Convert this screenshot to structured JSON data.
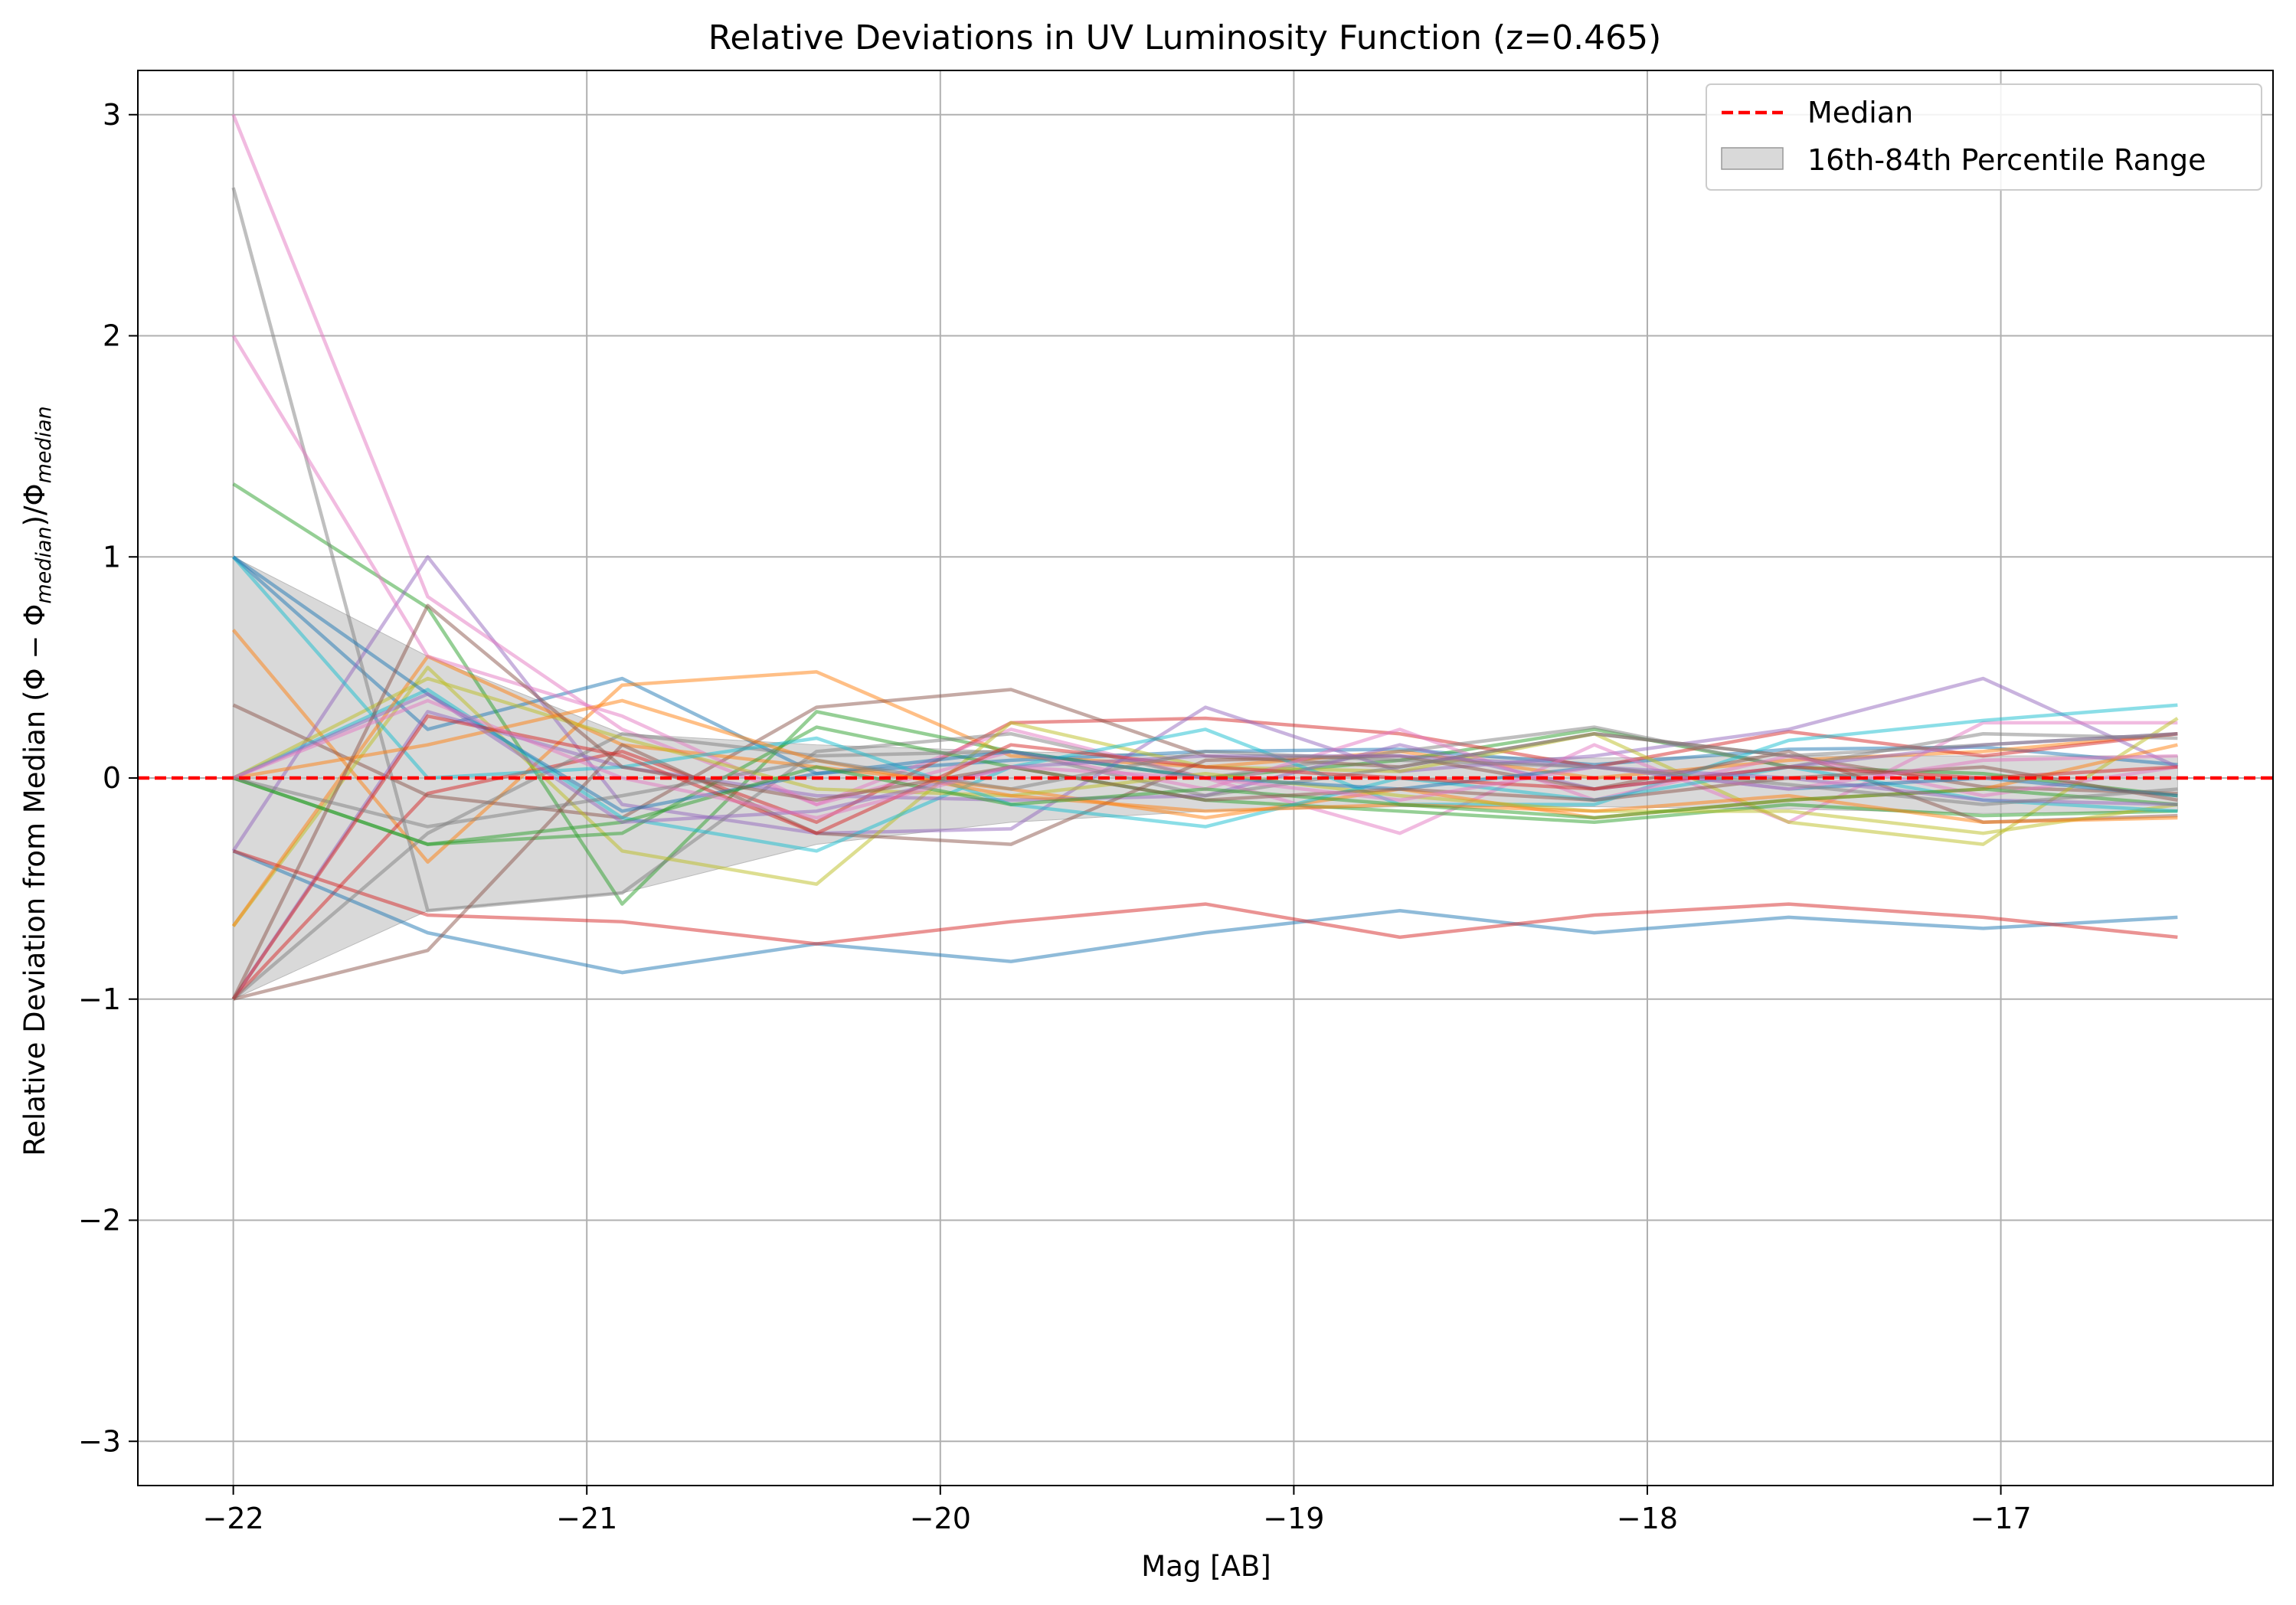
{
  "chart_data": {
    "type": "line",
    "title": "Relative Deviations in UV Luminosity Function (z=0.465)",
    "xlabel": "Mag [AB]",
    "ylabel": "Relative Deviation from Median (Φ − Φ",
    "ylabel_sub": "median",
    "ylabel_mid": ")/Φ",
    "xlim": [
      -22.27,
      -16.23
    ],
    "ylim": [
      -3.2,
      3.2
    ],
    "xticks": [
      -22,
      -21,
      -20,
      -19,
      -18,
      -17
    ],
    "yticks": [
      -3,
      -2,
      -1,
      0,
      1,
      2,
      3
    ],
    "xtick_labels": [
      "−22",
      "−21",
      "−20",
      "−19",
      "−18",
      "−17"
    ],
    "ytick_labels": [
      "−3",
      "−2",
      "−1",
      "0",
      "1",
      "2",
      "3"
    ],
    "grid": true,
    "legend": {
      "position": "upper right",
      "entries": [
        "Median",
        "16th-84th Percentile Range"
      ]
    },
    "x": [
      -22.0,
      -21.45,
      -20.9,
      -20.35,
      -19.8,
      -19.25,
      -18.7,
      -18.15,
      -17.6,
      -17.05,
      -16.5
    ],
    "median": {
      "name": "Median",
      "color": "#ff0000",
      "values": [
        0,
        0,
        0,
        0,
        0,
        0,
        0,
        0,
        0,
        0,
        0
      ]
    },
    "band": {
      "name": "16th-84th Percentile Range",
      "color": "#bfbfbf",
      "upper": [
        1.0,
        0.55,
        0.2,
        0.15,
        0.12,
        0.1,
        0.1,
        0.09,
        0.1,
        0.1,
        0.1
      ],
      "lower": [
        -1.0,
        -0.6,
        -0.52,
        -0.3,
        -0.2,
        -0.15,
        -0.13,
        -0.13,
        -0.14,
        -0.16,
        -0.15
      ]
    },
    "series": [
      {
        "color": "#1f77b4",
        "values": [
          1.0,
          0.22,
          0.45,
          0.02,
          0.08,
          0.12,
          0.13,
          0.06,
          0.13,
          0.14,
          0.06
        ]
      },
      {
        "color": "#ff7f0e",
        "values": [
          0.67,
          -0.38,
          0.42,
          0.48,
          0.1,
          0.05,
          0.12,
          0.0,
          0.08,
          0.12,
          0.2
        ]
      },
      {
        "color": "#2ca02c",
        "values": [
          1.33,
          0.77,
          -0.57,
          0.3,
          0.12,
          0.0,
          0.08,
          0.22,
          0.05,
          0.02,
          -0.08
        ]
      },
      {
        "color": "#d62728",
        "values": [
          -1.0,
          -0.07,
          0.12,
          -0.2,
          0.25,
          0.27,
          0.2,
          0.05,
          0.21,
          0.1,
          0.2
        ]
      },
      {
        "color": "#9467bd",
        "values": [
          -0.33,
          1.0,
          -0.12,
          -0.25,
          -0.23,
          0.32,
          0.03,
          0.1,
          0.22,
          0.45,
          0.05
        ]
      },
      {
        "color": "#8c564b",
        "values": [
          0.33,
          -0.08,
          -0.18,
          0.32,
          0.4,
          0.1,
          0.05,
          0.2,
          0.1,
          -0.04,
          -0.07
        ]
      },
      {
        "color": "#e377c2",
        "values": [
          3.0,
          0.82,
          0.22,
          -0.12,
          0.22,
          0.0,
          -0.25,
          0.15,
          -0.2,
          0.25,
          0.25
        ]
      },
      {
        "color": "#7f7f7f",
        "values": [
          2.67,
          -0.6,
          -0.52,
          0.12,
          0.2,
          0.0,
          0.12,
          0.23,
          0.05,
          0.2,
          0.18
        ]
      },
      {
        "color": "#bcbd22",
        "values": [
          -0.67,
          0.5,
          -0.33,
          -0.48,
          0.25,
          0.05,
          0.03,
          0.2,
          -0.2,
          -0.3,
          0.27
        ]
      },
      {
        "color": "#17becf",
        "values": [
          0.0,
          0.4,
          -0.18,
          -0.33,
          0.05,
          0.22,
          -0.12,
          -0.12,
          0.17,
          0.26,
          0.33
        ]
      },
      {
        "color": "#1f77b4",
        "values": [
          -0.33,
          -0.7,
          -0.88,
          -0.75,
          -0.83,
          -0.7,
          -0.6,
          -0.7,
          -0.63,
          -0.68,
          -0.63
        ]
      },
      {
        "color": "#ff7f0e",
        "values": [
          -0.67,
          0.55,
          0.15,
          0.05,
          -0.05,
          -0.18,
          -0.05,
          -0.18,
          -0.1,
          -0.05,
          0.15
        ]
      },
      {
        "color": "#2ca02c",
        "values": [
          0.0,
          -0.3,
          -0.25,
          0.23,
          0.05,
          -0.1,
          -0.15,
          -0.2,
          -0.12,
          -0.17,
          -0.15
        ]
      },
      {
        "color": "#d62728",
        "values": [
          -0.33,
          -0.62,
          -0.65,
          -0.75,
          -0.65,
          -0.57,
          -0.72,
          -0.62,
          -0.57,
          -0.63,
          -0.72
        ]
      },
      {
        "color": "#9467bd",
        "values": [
          -1.0,
          0.3,
          0.05,
          -0.08,
          -0.1,
          -0.08,
          0.15,
          -0.05,
          0.05,
          0.15,
          0.2
        ]
      },
      {
        "color": "#8c564b",
        "values": [
          -1.0,
          -0.78,
          0.15,
          -0.25,
          -0.3,
          0.08,
          0.1,
          -0.05,
          0.12,
          -0.2,
          -0.17
        ]
      },
      {
        "color": "#e377c2",
        "values": [
          2.0,
          0.55,
          0.28,
          -0.12,
          0.12,
          -0.05,
          0.22,
          -0.1,
          0.1,
          -0.08,
          0.05
        ]
      },
      {
        "color": "#7f7f7f",
        "values": [
          -1.0,
          -0.25,
          0.2,
          0.1,
          0.12,
          -0.08,
          0.05,
          0.2,
          0.1,
          0.15,
          0.2
        ]
      },
      {
        "color": "#bcbd22",
        "values": [
          0.0,
          0.45,
          0.18,
          -0.05,
          -0.08,
          0.02,
          -0.08,
          -0.15,
          -0.15,
          -0.25,
          -0.12
        ]
      },
      {
        "color": "#17becf",
        "values": [
          1.0,
          0.0,
          0.05,
          0.18,
          -0.12,
          -0.22,
          0.0,
          -0.1,
          0.05,
          -0.1,
          -0.15
        ]
      },
      {
        "color": "#1f77b4",
        "values": [
          1.0,
          0.38,
          -0.15,
          0.02,
          0.12,
          0.0,
          -0.05,
          0.05,
          -0.05,
          0.0,
          -0.08
        ]
      },
      {
        "color": "#ff7f0e",
        "values": [
          0.0,
          0.15,
          0.35,
          0.08,
          -0.08,
          -0.15,
          -0.12,
          -0.15,
          -0.08,
          -0.2,
          -0.18
        ]
      },
      {
        "color": "#2ca02c",
        "values": [
          0.0,
          -0.3,
          -0.2,
          0.05,
          -0.12,
          -0.05,
          -0.12,
          -0.18,
          -0.1,
          -0.05,
          -0.12
        ]
      },
      {
        "color": "#d62728",
        "values": [
          -1.0,
          0.28,
          0.1,
          -0.25,
          0.15,
          0.05,
          0.0,
          -0.05,
          0.05,
          0.0,
          0.05
        ]
      },
      {
        "color": "#9467bd",
        "values": [
          0.0,
          0.38,
          -0.2,
          -0.15,
          0.05,
          0.1,
          0.1,
          0.05,
          0.0,
          -0.1,
          -0.12
        ]
      },
      {
        "color": "#8c564b",
        "values": [
          -1.0,
          0.78,
          0.05,
          -0.1,
          0.05,
          -0.1,
          -0.05,
          -0.1,
          0.0,
          0.05,
          -0.1
        ]
      },
      {
        "color": "#e377c2",
        "values": [
          0.0,
          0.35,
          0.0,
          -0.18,
          0.05,
          0.0,
          -0.1,
          0.05,
          -0.05,
          0.08,
          0.1
        ]
      },
      {
        "color": "#7f7f7f",
        "values": [
          0.0,
          -0.22,
          -0.08,
          0.08,
          -0.05,
          0.12,
          0.08,
          0.05,
          -0.03,
          -0.12,
          -0.05
        ]
      }
    ]
  }
}
